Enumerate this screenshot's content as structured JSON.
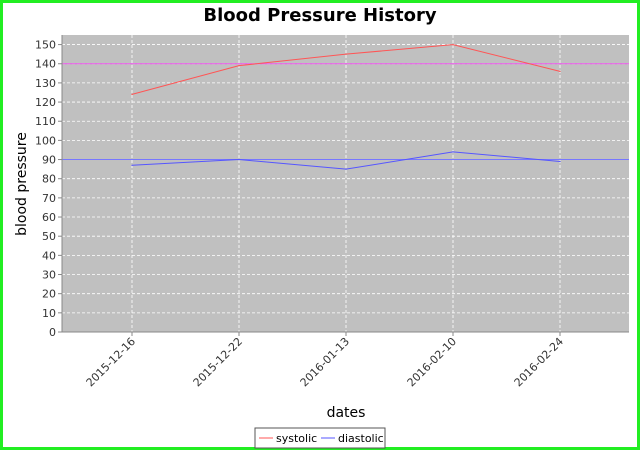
{
  "chart_data": {
    "type": "line",
    "title": "Blood Pressure History",
    "xlabel": "dates",
    "ylabel": "blood pressure",
    "categories": [
      "2015-12-16",
      "2015-12-22",
      "2016-01-13",
      "2016-02-10",
      "2016-02-24"
    ],
    "series": [
      {
        "name": "systolic",
        "color": "#ff5555",
        "values": [
          124,
          139,
          145,
          150,
          136
        ]
      },
      {
        "name": "diastolic",
        "color": "#5555ff",
        "values": [
          87,
          90,
          85,
          94,
          89
        ]
      }
    ],
    "reference_lines": [
      {
        "value": 140,
        "color": "#ee55ee"
      },
      {
        "value": 90,
        "color": "#7777ff"
      }
    ],
    "yticks": [
      0,
      10,
      20,
      30,
      40,
      50,
      60,
      70,
      80,
      90,
      100,
      110,
      120,
      130,
      140,
      150
    ],
    "ylim": [
      0,
      155
    ],
    "grid": true,
    "plot_background": "#c0c0c0",
    "legend_position": "bottom-center"
  }
}
